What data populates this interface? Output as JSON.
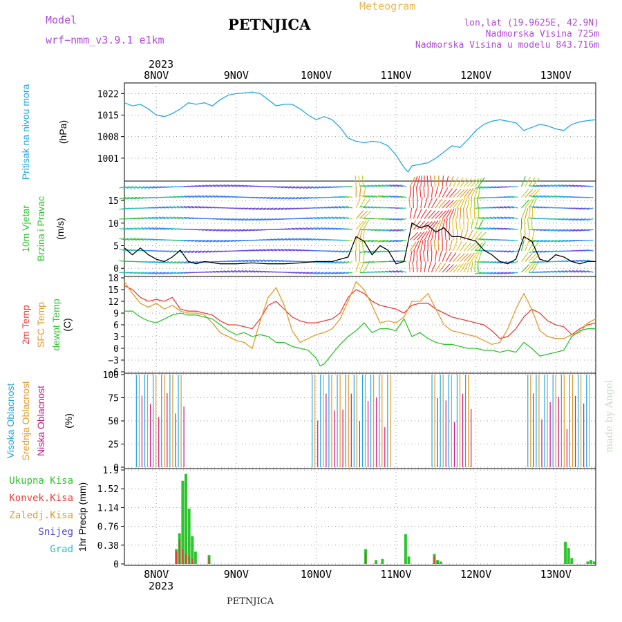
{
  "header": {
    "model_label": "Model",
    "model_name": "wrf−nmm_v3.9.1 e1km",
    "station": "PETNJICA",
    "meteogram_label": "Meteogram",
    "coords": "lon,lat (19.9625E, 42.9N)",
    "elevation": "Nadmorska Visina 725m",
    "model_elevation": "Nadmorska Visina u modelu 843.716m",
    "credit": "made by Angel",
    "footer_station": "PETNJICA"
  },
  "colors": {
    "pressure": "#22a7e6",
    "temp2m": "#ee3b3b",
    "sfc_temp": "#e39a2a",
    "dewpt": "#2ec42e",
    "cloud_high": "#22a7e6",
    "cloud_mid": "#e39a2a",
    "cloud_low": "#c71585",
    "precip_total": "#2ec42e",
    "precip_conv": "#ee3b3b",
    "snow": "#4b4bd8",
    "grad": "#2ec4c4",
    "header_purple": "#b04ad6"
  },
  "time_axis": {
    "year": "2023",
    "days": [
      "8NOV",
      "9NOV",
      "10NOV",
      "11NOV",
      "12NOV",
      "13NOV"
    ],
    "start_day": 7.6,
    "end_day": 13.5
  },
  "chart_data": [
    {
      "type": "line",
      "id": "pressure",
      "ylabel_lines": [
        "Pritisak na nivou mora",
        "(hPa)"
      ],
      "yticks": [
        "1022",
        "1015",
        "1008",
        "1001"
      ],
      "ylim": [
        994,
        1025
      ],
      "series": [
        {
          "x": [
            7.6,
            7.7,
            7.8,
            7.9,
            8.0,
            8.1,
            8.2,
            8.3,
            8.4,
            8.5,
            8.6,
            8.7,
            8.8,
            8.9,
            9.0,
            9.1,
            9.2,
            9.3,
            9.4,
            9.5,
            9.6,
            9.7,
            9.8,
            9.9,
            10.0,
            10.1,
            10.2,
            10.3,
            10.4,
            10.5,
            10.6,
            10.7,
            10.8,
            10.9,
            11.0,
            11.1,
            11.15,
            11.2,
            11.3,
            11.4,
            11.5,
            11.6,
            11.7,
            11.8,
            11.9,
            12.0,
            12.1,
            12.2,
            12.3,
            12.4,
            12.5,
            12.6,
            12.7,
            12.8,
            12.9,
            13.0,
            13.1,
            13.2,
            13.3,
            13.4,
            13.5
          ],
          "values": [
            1019,
            1018,
            1018.5,
            1017,
            1015,
            1014.5,
            1015.5,
            1017,
            1019,
            1018.5,
            1019,
            1018,
            1020,
            1021.5,
            1022,
            1022.2,
            1022.5,
            1022,
            1020,
            1018,
            1018.5,
            1018.5,
            1017,
            1015,
            1013.5,
            1014.5,
            1013.5,
            1011,
            1007.5,
            1006.5,
            1006,
            1006.5,
            1006.2,
            1005,
            1002,
            998,
            996.5,
            998.5,
            999,
            999.5,
            1001,
            1003,
            1005,
            1004.5,
            1007,
            1010,
            1012,
            1013,
            1013.5,
            1013,
            1012.5,
            1010,
            1011,
            1012,
            1011.5,
            1010.5,
            1010,
            1012,
            1012.8,
            1013.2,
            1013.5
          ]
        }
      ]
    },
    {
      "type": "line",
      "id": "wind",
      "ylabel_lines": [
        "10m Vjetar",
        "Brzina i Pravac",
        "(m/s)"
      ],
      "yticks": [
        "15",
        "10",
        "5",
        "0"
      ],
      "ylim": [
        -1.5,
        19
      ],
      "series": [
        {
          "x": [
            7.6,
            7.7,
            7.8,
            7.9,
            8.0,
            8.1,
            8.2,
            8.3,
            8.4,
            8.5,
            8.6,
            8.8,
            9.0,
            9.2,
            9.4,
            9.6,
            9.8,
            10.0,
            10.2,
            10.4,
            10.5,
            10.6,
            10.7,
            10.8,
            10.9,
            11.0,
            11.1,
            11.2,
            11.3,
            11.4,
            11.5,
            11.6,
            11.7,
            11.8,
            11.9,
            12.0,
            12.1,
            12.2,
            12.3,
            12.4,
            12.5,
            12.6,
            12.7,
            12.8,
            12.9,
            13.0,
            13.1,
            13.2,
            13.3,
            13.4,
            13.5
          ],
          "values": [
            4.5,
            3,
            4.5,
            3,
            2,
            1.5,
            2.5,
            4,
            1.5,
            1,
            1.5,
            1,
            1,
            1.2,
            1,
            1,
            1.2,
            1.5,
            1.5,
            2.5,
            7,
            6,
            3,
            5,
            4,
            1,
            1.5,
            10,
            9,
            9.5,
            8,
            9,
            7,
            7,
            6.5,
            6,
            4,
            3,
            1.5,
            1,
            2,
            7,
            6,
            2,
            1.5,
            3,
            2.5,
            1.5,
            1,
            1.5,
            1.5
          ]
        }
      ]
    },
    {
      "type": "line",
      "id": "temperature",
      "ylabel_lines": [
        "2m Temp",
        "SFC Temp",
        "dewpt Temp",
        "(C)"
      ],
      "yticks": [
        "18",
        "15",
        "12",
        "9",
        "6",
        "3",
        "0",
        "−3",
        "−6"
      ],
      "ylim": [
        -6,
        18
      ],
      "series": [
        {
          "name": "2m Temp",
          "x": [
            7.6,
            7.7,
            7.8,
            7.9,
            8.0,
            8.1,
            8.2,
            8.3,
            8.4,
            8.5,
            8.6,
            8.7,
            8.8,
            8.9,
            9.0,
            9.1,
            9.2,
            9.3,
            9.4,
            9.5,
            9.6,
            9.7,
            9.8,
            9.9,
            10.0,
            10.1,
            10.2,
            10.3,
            10.4,
            10.5,
            10.6,
            10.7,
            10.8,
            10.9,
            11.0,
            11.1,
            11.2,
            11.3,
            11.4,
            11.5,
            11.6,
            11.7,
            11.8,
            11.9,
            12.0,
            12.1,
            12.2,
            12.3,
            12.4,
            12.5,
            12.6,
            12.7,
            12.8,
            12.9,
            13.0,
            13.1,
            13.2,
            13.3,
            13.4,
            13.5
          ],
          "values": [
            16,
            15,
            13,
            12,
            12.5,
            12,
            13,
            10,
            9.5,
            9.5,
            9,
            8.5,
            7,
            6,
            6,
            5.5,
            5,
            7.5,
            11,
            12,
            10,
            8,
            7,
            6.5,
            6.5,
            7,
            7.5,
            9,
            13,
            15,
            14,
            12,
            11,
            10.5,
            10,
            9,
            11,
            11.5,
            11.5,
            10,
            9,
            8,
            7.5,
            7,
            6.5,
            6,
            4.5,
            2.5,
            3,
            5,
            8,
            10,
            9,
            7,
            6,
            5.5,
            3.5,
            5,
            6,
            6.5
          ]
        },
        {
          "name": "SFC Temp",
          "x": [
            7.6,
            7.7,
            7.8,
            7.9,
            8.0,
            8.1,
            8.2,
            8.3,
            8.4,
            8.5,
            8.6,
            8.7,
            8.8,
            8.9,
            9.0,
            9.1,
            9.2,
            9.3,
            9.4,
            9.5,
            9.6,
            9.7,
            9.8,
            9.9,
            10.0,
            10.1,
            10.2,
            10.3,
            10.4,
            10.5,
            10.6,
            10.7,
            10.8,
            10.9,
            11.0,
            11.1,
            11.2,
            11.3,
            11.4,
            11.5,
            11.6,
            11.7,
            11.8,
            11.9,
            12.0,
            12.1,
            12.2,
            12.3,
            12.4,
            12.5,
            12.6,
            12.7,
            12.8,
            12.9,
            13.0,
            13.1,
            13.2,
            13.3,
            13.4,
            13.5
          ],
          "values": [
            17,
            14,
            11.5,
            10.5,
            11.5,
            10,
            11,
            9.5,
            9,
            9,
            8.5,
            6.5,
            4,
            3,
            2,
            1.5,
            0,
            7,
            13,
            15.5,
            11,
            4.5,
            1.5,
            2.5,
            3.5,
            4,
            5,
            7.5,
            12,
            17,
            15,
            11,
            6.5,
            7,
            6.5,
            8,
            12,
            12,
            14,
            10,
            6,
            4.5,
            4,
            3.5,
            3,
            2,
            1,
            1.5,
            5,
            10,
            14,
            10,
            4.5,
            3,
            2.5,
            2.5,
            3.5,
            4,
            6.5,
            7.5
          ]
        },
        {
          "name": "dewpt Temp",
          "x": [
            7.6,
            7.7,
            7.8,
            7.9,
            8.0,
            8.1,
            8.2,
            8.3,
            8.4,
            8.5,
            8.6,
            8.7,
            8.8,
            8.9,
            9.0,
            9.1,
            9.2,
            9.3,
            9.4,
            9.5,
            9.6,
            9.7,
            9.8,
            9.9,
            10.0,
            10.05,
            10.1,
            10.2,
            10.3,
            10.4,
            10.5,
            10.6,
            10.7,
            10.8,
            10.9,
            11.0,
            11.1,
            11.2,
            11.3,
            11.4,
            11.5,
            11.6,
            11.7,
            11.8,
            11.9,
            12.0,
            12.1,
            12.2,
            12.3,
            12.4,
            12.5,
            12.6,
            12.7,
            12.8,
            12.9,
            13.0,
            13.1,
            13.2,
            13.3,
            13.4,
            13.5
          ],
          "values": [
            9.5,
            9.5,
            8,
            7,
            6.5,
            7.5,
            8.5,
            9,
            8.5,
            8.5,
            8,
            7.5,
            6,
            4.5,
            3.5,
            4,
            3,
            3.5,
            3,
            1.5,
            1.5,
            0.5,
            0,
            -0.5,
            -2.5,
            -4.5,
            -4,
            -1.5,
            1,
            3,
            4.5,
            6.5,
            4,
            5,
            5,
            4.5,
            7.5,
            3,
            4,
            2.5,
            1.5,
            1,
            1,
            0.5,
            0,
            0,
            -0.5,
            -0.5,
            -1,
            -0.5,
            -1,
            1.5,
            0,
            -2,
            -1.5,
            -1,
            -0.5,
            3,
            4.5,
            5,
            5
          ]
        }
      ]
    },
    {
      "type": "bar",
      "id": "cloud",
      "ylabel_lines": [
        "Visoka Oblacnost",
        "Srednja Oblacnost",
        "Niska Oblacnost",
        "(%)"
      ],
      "yticks": [
        "100",
        "75",
        "50",
        "25",
        "0"
      ],
      "ylim": [
        0,
        100
      ],
      "cloudy_periods": [
        [
          7.75,
          8.35
        ],
        [
          9.95,
          10.95
        ],
        [
          11.45,
          11.95
        ],
        [
          12.65,
          13.45
        ]
      ],
      "series": [
        {
          "name": "Visoka Oblacnost",
          "level": 100
        },
        {
          "name": "Srednja Oblacnost",
          "level": 100
        },
        {
          "name": "Niska Oblacnost",
          "level": 80
        }
      ]
    },
    {
      "type": "bar",
      "id": "precip",
      "ylabel_lines": [
        "1hr Precip (mm)"
      ],
      "legend": [
        "Ukupna Kisa",
        "Konvek.Kisa",
        "Zaledj.Kisa",
        "Snijeg",
        "Grad"
      ],
      "yticks": [
        "1.9",
        "1.52",
        "1.14",
        "0.76",
        "0.38",
        "0"
      ],
      "ylim": [
        0,
        1.9
      ],
      "series": [
        {
          "name": "Ukupna Kisa",
          "x": [
            8.25,
            8.29,
            8.33,
            8.37,
            8.41,
            8.45,
            8.49,
            8.66,
            10.62,
            10.75,
            10.83,
            11.12,
            11.16,
            11.48,
            11.52,
            11.56,
            13.12,
            13.16,
            13.2,
            13.4,
            13.44,
            13.48
          ],
          "values": [
            0.3,
            0.62,
            1.68,
            1.82,
            1.12,
            0.56,
            0.25,
            0.18,
            0.3,
            0.08,
            0.1,
            0.6,
            0.15,
            0.2,
            0.08,
            0.05,
            0.45,
            0.32,
            0.12,
            0.05,
            0.08,
            0.05
          ]
        },
        {
          "name": "Konvek.Kisa",
          "x": [
            8.25,
            8.29,
            8.33,
            8.37,
            8.41,
            8.45,
            8.66,
            10.62,
            11.48,
            11.52
          ],
          "values": [
            0.25,
            0.5,
            0.3,
            0.2,
            0.15,
            0.1,
            0.12,
            0.22,
            0.15,
            0.05
          ]
        }
      ]
    }
  ]
}
